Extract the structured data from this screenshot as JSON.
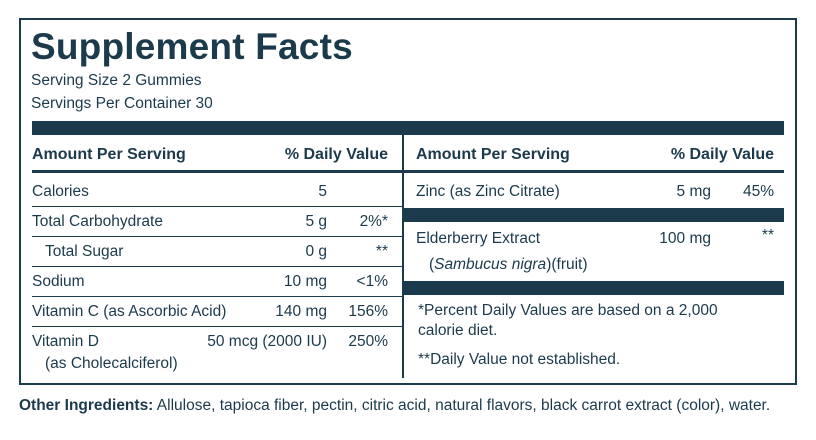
{
  "title": "Supplement Facts",
  "serving_size": "Serving Size 2 Gummies",
  "servings_per_container": "Servings Per Container 30",
  "headers": {
    "amount_per_serving": "Amount Per Serving",
    "daily_value": "% Daily Value"
  },
  "left_rows": [
    {
      "name": "Calories",
      "amount": "5",
      "dv": ""
    },
    {
      "name": "Total Carbohydrate",
      "amount": "5 g",
      "dv": "2%*"
    },
    {
      "name": "Total Sugar",
      "amount": "0 g",
      "dv": "**"
    },
    {
      "name": "Sodium",
      "amount": "10 mg",
      "dv": "<1%"
    },
    {
      "name": "Vitamin C (as Ascorbic Acid)",
      "amount": "140 mg",
      "dv": "156%"
    },
    {
      "name": "Vitamin D",
      "name_line2": "(as Cholecalciferol)",
      "amount": "50 mcg (2000 IU)",
      "dv": "250%"
    }
  ],
  "right_rows": [
    {
      "name": "Zinc (as Zinc Citrate)",
      "amount": "5 mg",
      "dv": "45%"
    },
    {
      "name": "Elderberry Extract",
      "name_line2_italic": "Sambucus nigra",
      "name_line2_rest": ")(fruit)",
      "name_line2_open": "(",
      "amount": "100 mg",
      "dv": "**"
    }
  ],
  "footnotes": {
    "percent_line1": "*Percent Daily Values are based on a 2,000",
    "percent_line2": "calorie diet.",
    "not_established": "**Daily Value not established."
  },
  "other_ingredients": {
    "label": "Other Ingredients:",
    "text": " Allulose, tapioca fiber, pectin, citric acid, natural flavors, black carrot extract (color), water."
  },
  "colors": {
    "ink": "#1b3a4b",
    "background": "#ffffff"
  }
}
